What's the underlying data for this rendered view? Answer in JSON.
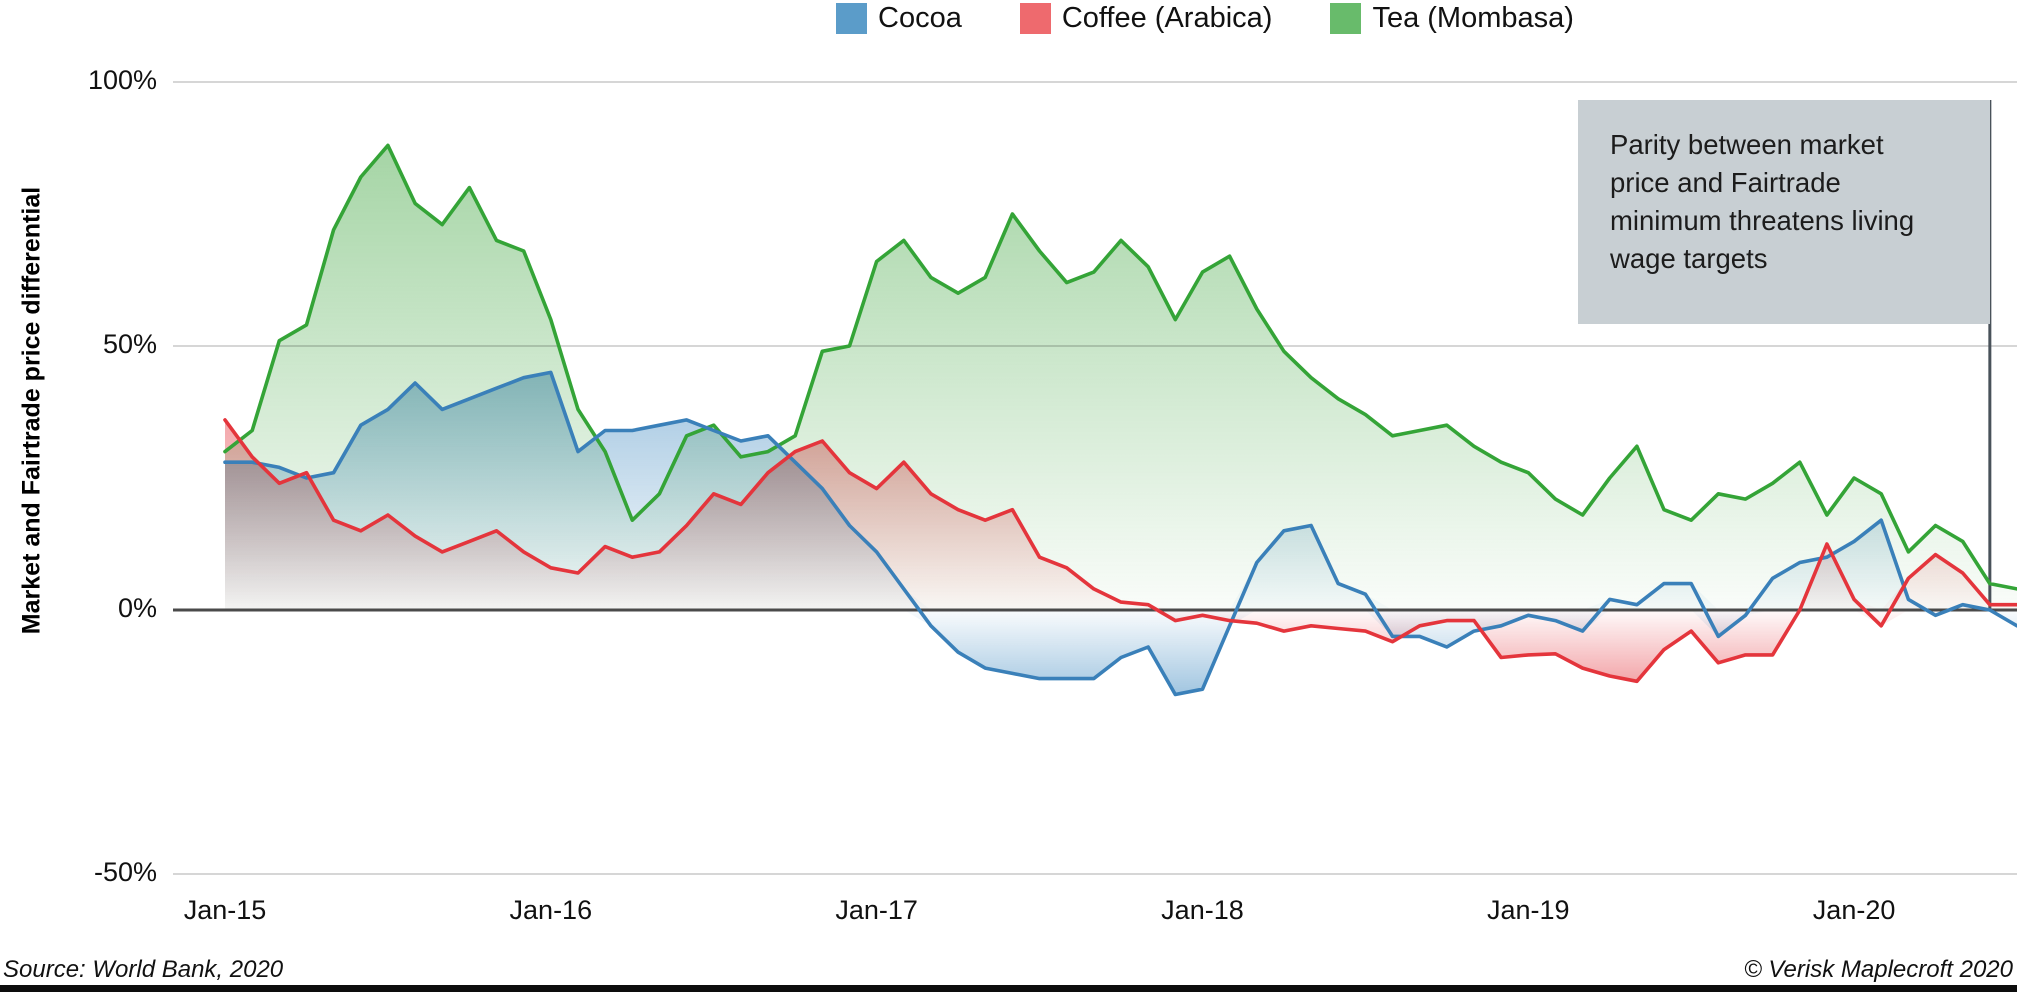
{
  "legend": {
    "items": [
      {
        "label": "Cocoa",
        "swatch_color": "#5b9cc9"
      },
      {
        "label": "Coffee (Arabica)",
        "swatch_color": "#ee6a6e"
      },
      {
        "label": "Tea (Mombasa)",
        "swatch_color": "#68bb6b"
      }
    ]
  },
  "y_axis": {
    "title": "Market and Fairtrade price differential",
    "ticks": [
      {
        "label": "100%",
        "value": 100
      },
      {
        "label": "50%",
        "value": 50
      },
      {
        "label": "0%",
        "value": 0
      },
      {
        "label": "-50%",
        "value": -50
      }
    ]
  },
  "x_axis": {
    "ticks": [
      "Jan-15",
      "Jan-16",
      "Jan-17",
      "Jan-18",
      "Jan-19",
      "Jan-20"
    ]
  },
  "annotation": {
    "text": "Parity between market price and Fairtrade minimum threatens living wage targets"
  },
  "footer": {
    "source": "Source: World Bank, 2020",
    "copyright": "© Verisk Maplecroft 2020"
  },
  "colors": {
    "grid": "#c9c9c9",
    "zero_line": "#4a4a4a",
    "marker_line": "#49525a"
  },
  "chart_data": {
    "type": "area",
    "title": "",
    "xlabel": "",
    "ylabel": "Market and Fairtrade price differential",
    "ylim": [
      -50,
      100
    ],
    "grid": "horizontal",
    "legend_position": "top",
    "frequency": "monthly",
    "months": [
      "Jan-15",
      "Feb-15",
      "Mar-15",
      "Apr-15",
      "May-15",
      "Jun-15",
      "Jul-15",
      "Aug-15",
      "Sep-15",
      "Oct-15",
      "Nov-15",
      "Dec-15",
      "Jan-16",
      "Feb-16",
      "Mar-16",
      "Apr-16",
      "May-16",
      "Jun-16",
      "Jul-16",
      "Aug-16",
      "Sep-16",
      "Oct-16",
      "Nov-16",
      "Dec-16",
      "Jan-17",
      "Feb-17",
      "Mar-17",
      "Apr-17",
      "May-17",
      "Jun-17",
      "Jul-17",
      "Aug-17",
      "Sep-17",
      "Oct-17",
      "Nov-17",
      "Dec-17",
      "Jan-18",
      "Feb-18",
      "Mar-18",
      "Apr-18",
      "May-18",
      "Jun-18",
      "Jul-18",
      "Aug-18",
      "Sep-18",
      "Oct-18",
      "Nov-18",
      "Dec-18",
      "Jan-19",
      "Feb-19",
      "Mar-19",
      "Apr-19",
      "May-19",
      "Jun-19",
      "Jul-19",
      "Aug-19",
      "Sep-19",
      "Oct-19",
      "Nov-19",
      "Dec-19",
      "Jan-20",
      "Feb-20",
      "Mar-20",
      "Apr-20",
      "May-20",
      "Jun-20",
      "Jul-20"
    ],
    "unit": "percent",
    "marker_line_month": "Jun-20",
    "series": [
      {
        "name": "Tea (Mombasa)",
        "line_color": "#34a437",
        "fill_color": "#52ae52",
        "values": [
          30,
          34,
          51,
          54,
          72,
          82,
          88,
          77,
          73,
          80,
          70,
          68,
          55,
          38,
          30,
          17,
          22,
          33,
          35,
          29,
          30,
          33,
          49,
          50,
          66,
          70,
          63,
          60,
          63,
          75,
          68,
          62,
          64,
          70,
          65,
          55,
          64,
          67,
          57,
          49,
          44,
          40,
          37,
          33,
          34,
          35,
          31,
          28,
          26,
          21,
          18,
          25,
          31,
          19,
          17,
          22,
          21,
          24,
          28,
          18,
          25,
          22,
          11,
          16,
          13,
          5,
          4
        ]
      },
      {
        "name": "Cocoa",
        "line_color": "#3a80b9",
        "fill_color": "#4a90c4",
        "values": [
          28,
          28,
          27,
          25,
          26,
          35,
          38,
          43,
          38,
          40,
          42,
          44,
          45,
          30,
          34,
          34,
          35,
          36,
          34,
          32,
          33,
          28,
          23,
          16,
          11,
          4,
          -3,
          -8,
          -11,
          -12,
          -13,
          -13,
          -13,
          -9,
          -7,
          -16,
          -15,
          -3,
          9,
          15,
          16,
          5,
          3,
          -5,
          -5,
          -7,
          -4,
          -3,
          -1,
          -2,
          -4,
          2,
          1,
          5,
          5,
          -5,
          -1,
          6,
          9,
          10,
          13,
          17,
          2,
          -1,
          1,
          0,
          -3
        ]
      },
      {
        "name": "Coffee (Arabica)",
        "line_color": "#e4353c",
        "fill_color": "#e8555c",
        "values": [
          36,
          29,
          24,
          26,
          17,
          15,
          18,
          14,
          11,
          13,
          15,
          11,
          8,
          7,
          12,
          10,
          11,
          16,
          22,
          20,
          26,
          30,
          32,
          26,
          23,
          28,
          22,
          19,
          17,
          19,
          10,
          8,
          4,
          1.5,
          1,
          -2,
          -1,
          -2,
          -2.5,
          -4,
          -3,
          -3.5,
          -4,
          -6,
          -3,
          -2,
          -2,
          -9,
          -8.5,
          -8.3,
          -11,
          -12.5,
          -13.5,
          -7.5,
          -4,
          -10,
          -8.5,
          -8.5,
          0,
          12.5,
          2,
          -3,
          6,
          10.5,
          7,
          1,
          1
        ]
      }
    ]
  }
}
